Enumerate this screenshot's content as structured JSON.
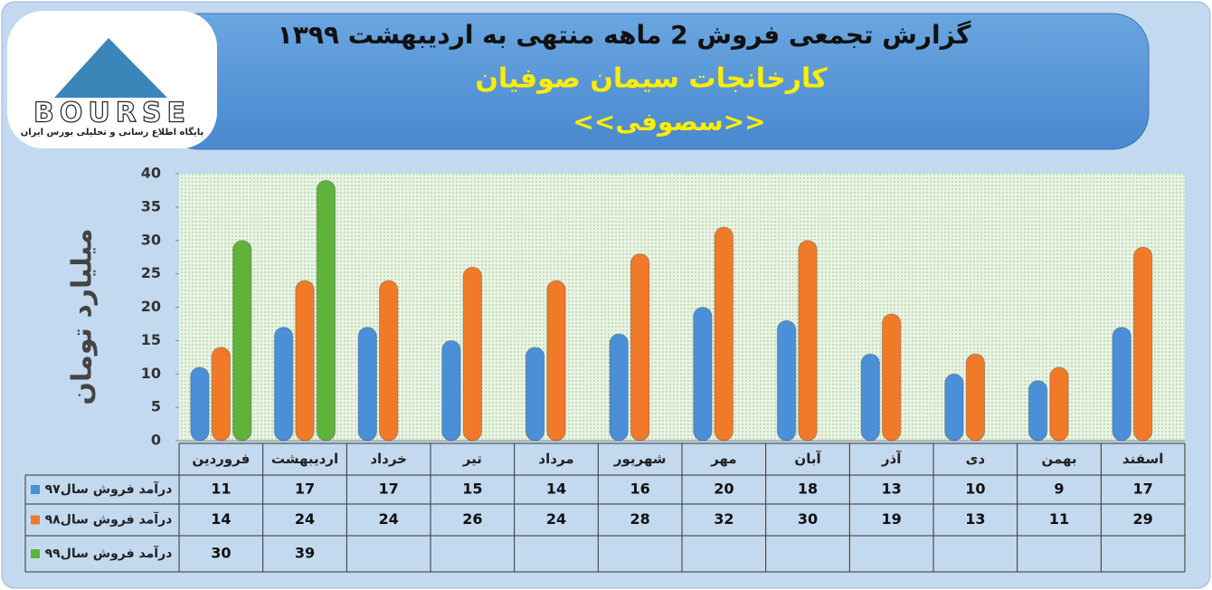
{
  "chart_data": {
    "type": "bar",
    "title": "گزارش تجمعی فروش  2 ماهه منتهی به اردیبهشت ۱۳۹۹",
    "subtitle": "کارخانجات سیمان صوفیان",
    "symbol": "<<سصوفی>>",
    "y_label": "میلیارد تومان",
    "categories": [
      "فروردین",
      "اردیبهشت",
      "خرداد",
      "تیر",
      "مرداد",
      "شهریور",
      "مهر",
      "آبان",
      "آذر",
      "دی",
      "بهمن",
      "اسفند"
    ],
    "series": [
      {
        "name": "درآمد فروش سال۹۷",
        "color": "#4a8fd8",
        "values": [
          11,
          17,
          17,
          15,
          14,
          16,
          20,
          18,
          13,
          10,
          9,
          17
        ]
      },
      {
        "name": "درآمد فروش سال۹۸",
        "color": "#f07a28",
        "values": [
          14,
          24,
          24,
          26,
          24,
          28,
          32,
          30,
          19,
          13,
          11,
          29
        ]
      },
      {
        "name": "درآمد فروش سال۹۹",
        "color": "#5fb23a",
        "values": [
          30,
          39,
          null,
          null,
          null,
          null,
          null,
          null,
          null,
          null,
          null,
          null
        ]
      }
    ],
    "ylim": [
      0,
      40
    ],
    "yticks": [
      0,
      5,
      10,
      15,
      20,
      25,
      30,
      35,
      40
    ]
  },
  "logo": {
    "brand": "BOURSE",
    "tagline": "پایگاه اطلاع رسانی و تحلیلی بورس ایران"
  }
}
